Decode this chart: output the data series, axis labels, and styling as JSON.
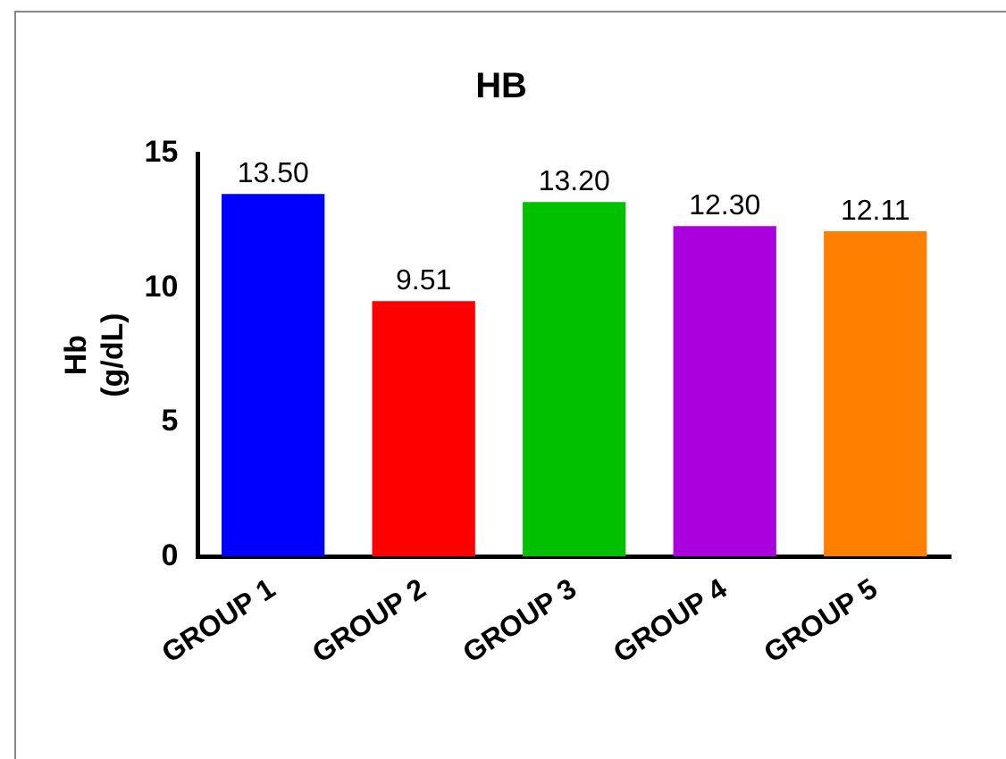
{
  "chart_data": {
    "type": "bar",
    "title": "HB",
    "ylabel": "Hb\n(g/dL)",
    "categories": [
      "GROUP 1",
      "GROUP 2",
      "GROUP 3",
      "GROUP 4",
      "GROUP 5"
    ],
    "values": [
      13.5,
      9.51,
      13.2,
      12.3,
      12.11
    ],
    "colors": [
      "#0000ff",
      "#ff0000",
      "#00c000",
      "#aa00dd",
      "#ff8000"
    ],
    "value_labels": [
      "13.50",
      "9.51",
      "13.20",
      "12.30",
      "12.11"
    ],
    "ylim": [
      0,
      15
    ],
    "yticks": [
      0,
      5,
      10,
      15
    ],
    "grid": false,
    "legend": false
  }
}
